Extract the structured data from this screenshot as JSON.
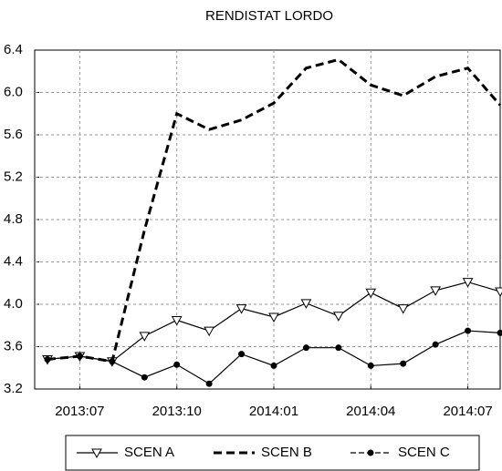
{
  "chart_data": {
    "type": "line",
    "title": "RENDISTAT LORDO",
    "categories": [
      null,
      "2013:07",
      null,
      null,
      "2013:10",
      null,
      null,
      "2014:01",
      null,
      null,
      "2014:04",
      null,
      null,
      "2014:07",
      null
    ],
    "series": [
      {
        "name": "SCEN A",
        "color": "#000000",
        "line_style": "solid",
        "marker": "triangle-down",
        "values": [
          3.48,
          3.51,
          3.46,
          3.7,
          3.85,
          3.75,
          3.96,
          3.88,
          4.01,
          3.89,
          4.11,
          3.96,
          4.13,
          4.21,
          4.12
        ]
      },
      {
        "name": "SCEN B",
        "color": "#000000",
        "line_style": "dashed",
        "marker": "none",
        "values": [
          3.48,
          3.51,
          3.46,
          4.7,
          5.8,
          5.65,
          5.74,
          5.9,
          6.23,
          6.31,
          6.07,
          5.97,
          6.15,
          6.23,
          5.88
        ]
      },
      {
        "name": "SCEN C",
        "color": "#000000",
        "line_style": "solid",
        "marker": "circle",
        "values": [
          3.48,
          3.51,
          3.46,
          3.31,
          3.43,
          3.25,
          3.53,
          3.42,
          3.59,
          3.59,
          3.42,
          3.44,
          3.62,
          3.75,
          3.73
        ]
      }
    ],
    "ylim": [
      3.2,
      6.4
    ],
    "yticks": [
      3.2,
      3.6,
      {
        "value": 4,
        "label": "4.0"
      },
      4.4,
      4.8,
      5.2,
      5.6,
      {
        "value": 6,
        "label": "6.0"
      },
      6.4
    ],
    "grid": true,
    "legend": "bottom"
  }
}
